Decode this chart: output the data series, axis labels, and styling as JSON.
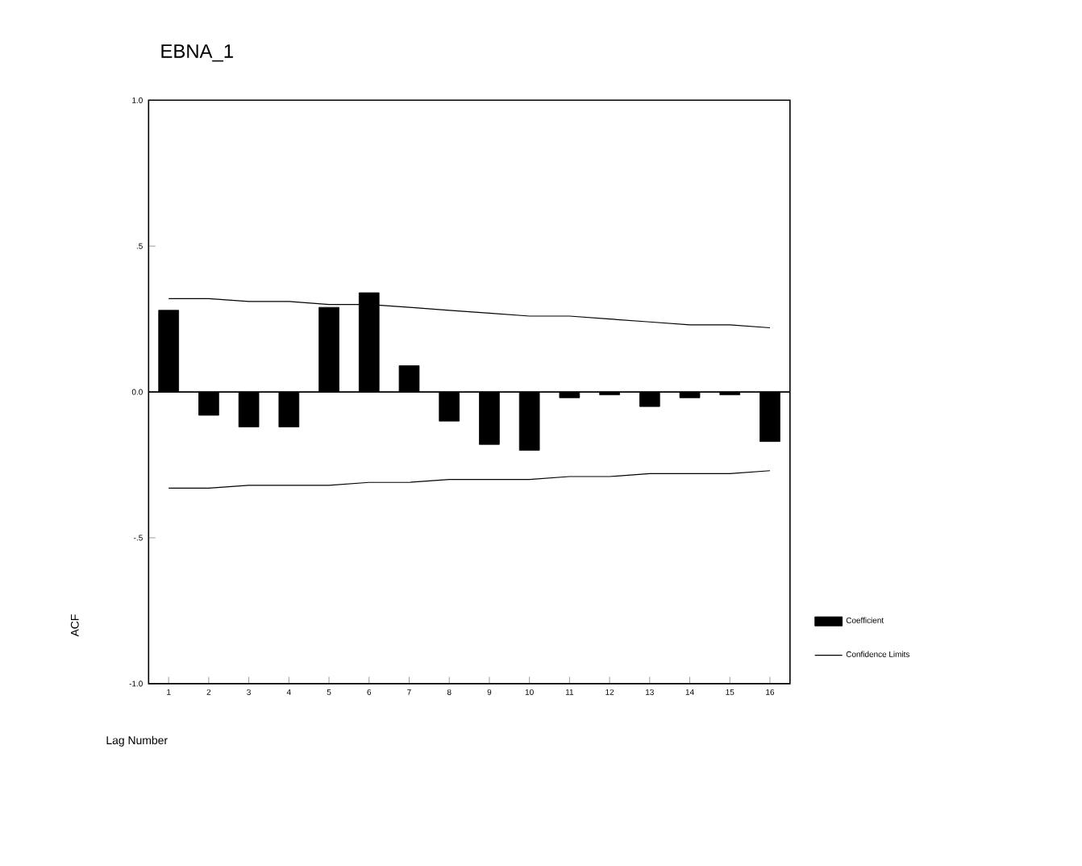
{
  "chart_data": {
    "type": "bar",
    "title": "EBNA_1",
    "xlabel": "Lag Number",
    "ylabel": "ACF",
    "x": [
      1,
      2,
      3,
      4,
      5,
      6,
      7,
      8,
      9,
      10,
      11,
      12,
      13,
      14,
      15,
      16
    ],
    "xlim": [
      0.5,
      16.5
    ],
    "xticks": [
      1,
      2,
      3,
      4,
      5,
      6,
      7,
      8,
      9,
      10,
      11,
      12,
      13,
      14,
      15,
      16
    ],
    "ylim": [
      -1,
      1
    ],
    "yticks": [
      {
        "value": -1,
        "label": "-1.0"
      },
      {
        "value": -0.5,
        "label": "-.5"
      },
      {
        "value": 0,
        "label": "0.0"
      },
      {
        "value": 0.5,
        "label": ".5"
      },
      {
        "value": 1,
        "label": "1.0"
      }
    ],
    "series": [
      {
        "name": "Coefficient",
        "color": "#000000",
        "values": [
          0.28,
          -0.08,
          -0.12,
          -0.12,
          0.29,
          0.34,
          0.09,
          -0.1,
          -0.18,
          -0.2,
          -0.02,
          -0.01,
          -0.05,
          -0.02,
          -0.01,
          -0.17
        ]
      },
      {
        "name": "Confidence Limits",
        "type": "line",
        "color": "#000000",
        "values": [
          0.32,
          0.32,
          0.31,
          0.31,
          0.3,
          0.3,
          0.29,
          0.28,
          0.27,
          0.26,
          0.26,
          0.25,
          0.24,
          0.23,
          0.23,
          0.22
        ]
      },
      {
        "type": "line",
        "color": "#000000",
        "values": [
          -0.33,
          -0.33,
          -0.32,
          -0.32,
          -0.32,
          -0.31,
          -0.31,
          -0.3,
          -0.3,
          -0.3,
          -0.29,
          -0.29,
          -0.28,
          -0.28,
          -0.28,
          -0.27
        ]
      }
    ],
    "legend": "right"
  }
}
